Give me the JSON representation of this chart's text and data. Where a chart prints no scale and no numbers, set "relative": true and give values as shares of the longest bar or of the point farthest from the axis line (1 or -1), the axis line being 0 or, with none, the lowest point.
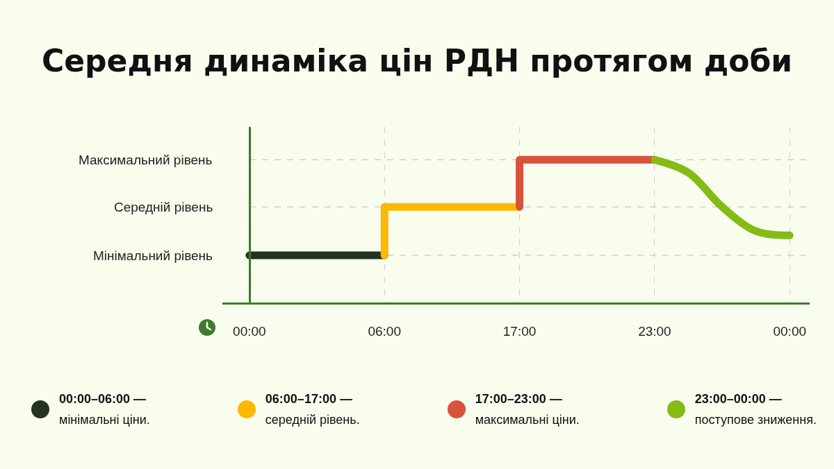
{
  "chart_data": {
    "type": "step",
    "title": "Середня динаміка цін РДН протягом доби",
    "categories": [
      "00:00",
      null,
      null,
      null,
      "06:00",
      null,
      null,
      null,
      "17:00",
      null,
      null,
      null,
      "23:00",
      null,
      null,
      null,
      "00:00"
    ],
    "relative": true,
    "ref_lines": [
      {
        "axis": "y",
        "value": 0.33,
        "label": "Мінімальний рівень",
        "line_style": "dashed",
        "color": "#cfcfcf"
      },
      {
        "axis": "y",
        "value": 0.67,
        "label": "Середній рівень",
        "line_style": "dashed",
        "color": "#cfcfcf"
      },
      {
        "axis": "y",
        "value": 1,
        "label": "Максимальний рівень",
        "line_style": "dashed",
        "color": "#cfcfcf"
      }
    ],
    "grid": "x",
    "legend": "bottom",
    "line_style": "solid",
    "series": [
      {
        "name": "00:00–06:00 — мінімальні ціни.",
        "color": "#233320",
        "values": [
          0.33,
          0.33,
          0.33,
          0.33,
          0.33,
          null,
          null,
          null,
          null,
          null,
          null,
          null,
          null,
          null,
          null,
          null,
          null
        ]
      },
      {
        "name": "06:00–17:00 — середній рівень.",
        "color": "#fdb900",
        "values": [
          null,
          null,
          null,
          null,
          0.33,
          0.67,
          0.67,
          0.67,
          0.67,
          null,
          null,
          null,
          null,
          null,
          null,
          null,
          null
        ]
      },
      {
        "name": "17:00–23:00 — максимальні ціни.",
        "color": "#d9533b",
        "values": [
          null,
          null,
          null,
          null,
          null,
          null,
          null,
          null,
          0.67,
          1,
          1,
          1,
          1,
          null,
          null,
          null,
          null
        ]
      },
      {
        "name": "23:00–00:00 — поступове зниження.",
        "color": "#84bb15",
        "type": "line",
        "values": [
          null,
          null,
          null,
          null,
          null,
          null,
          null,
          null,
          null,
          null,
          null,
          null,
          1,
          0.91,
          0.67,
          0.5,
          0.47
        ]
      }
    ]
  }
}
